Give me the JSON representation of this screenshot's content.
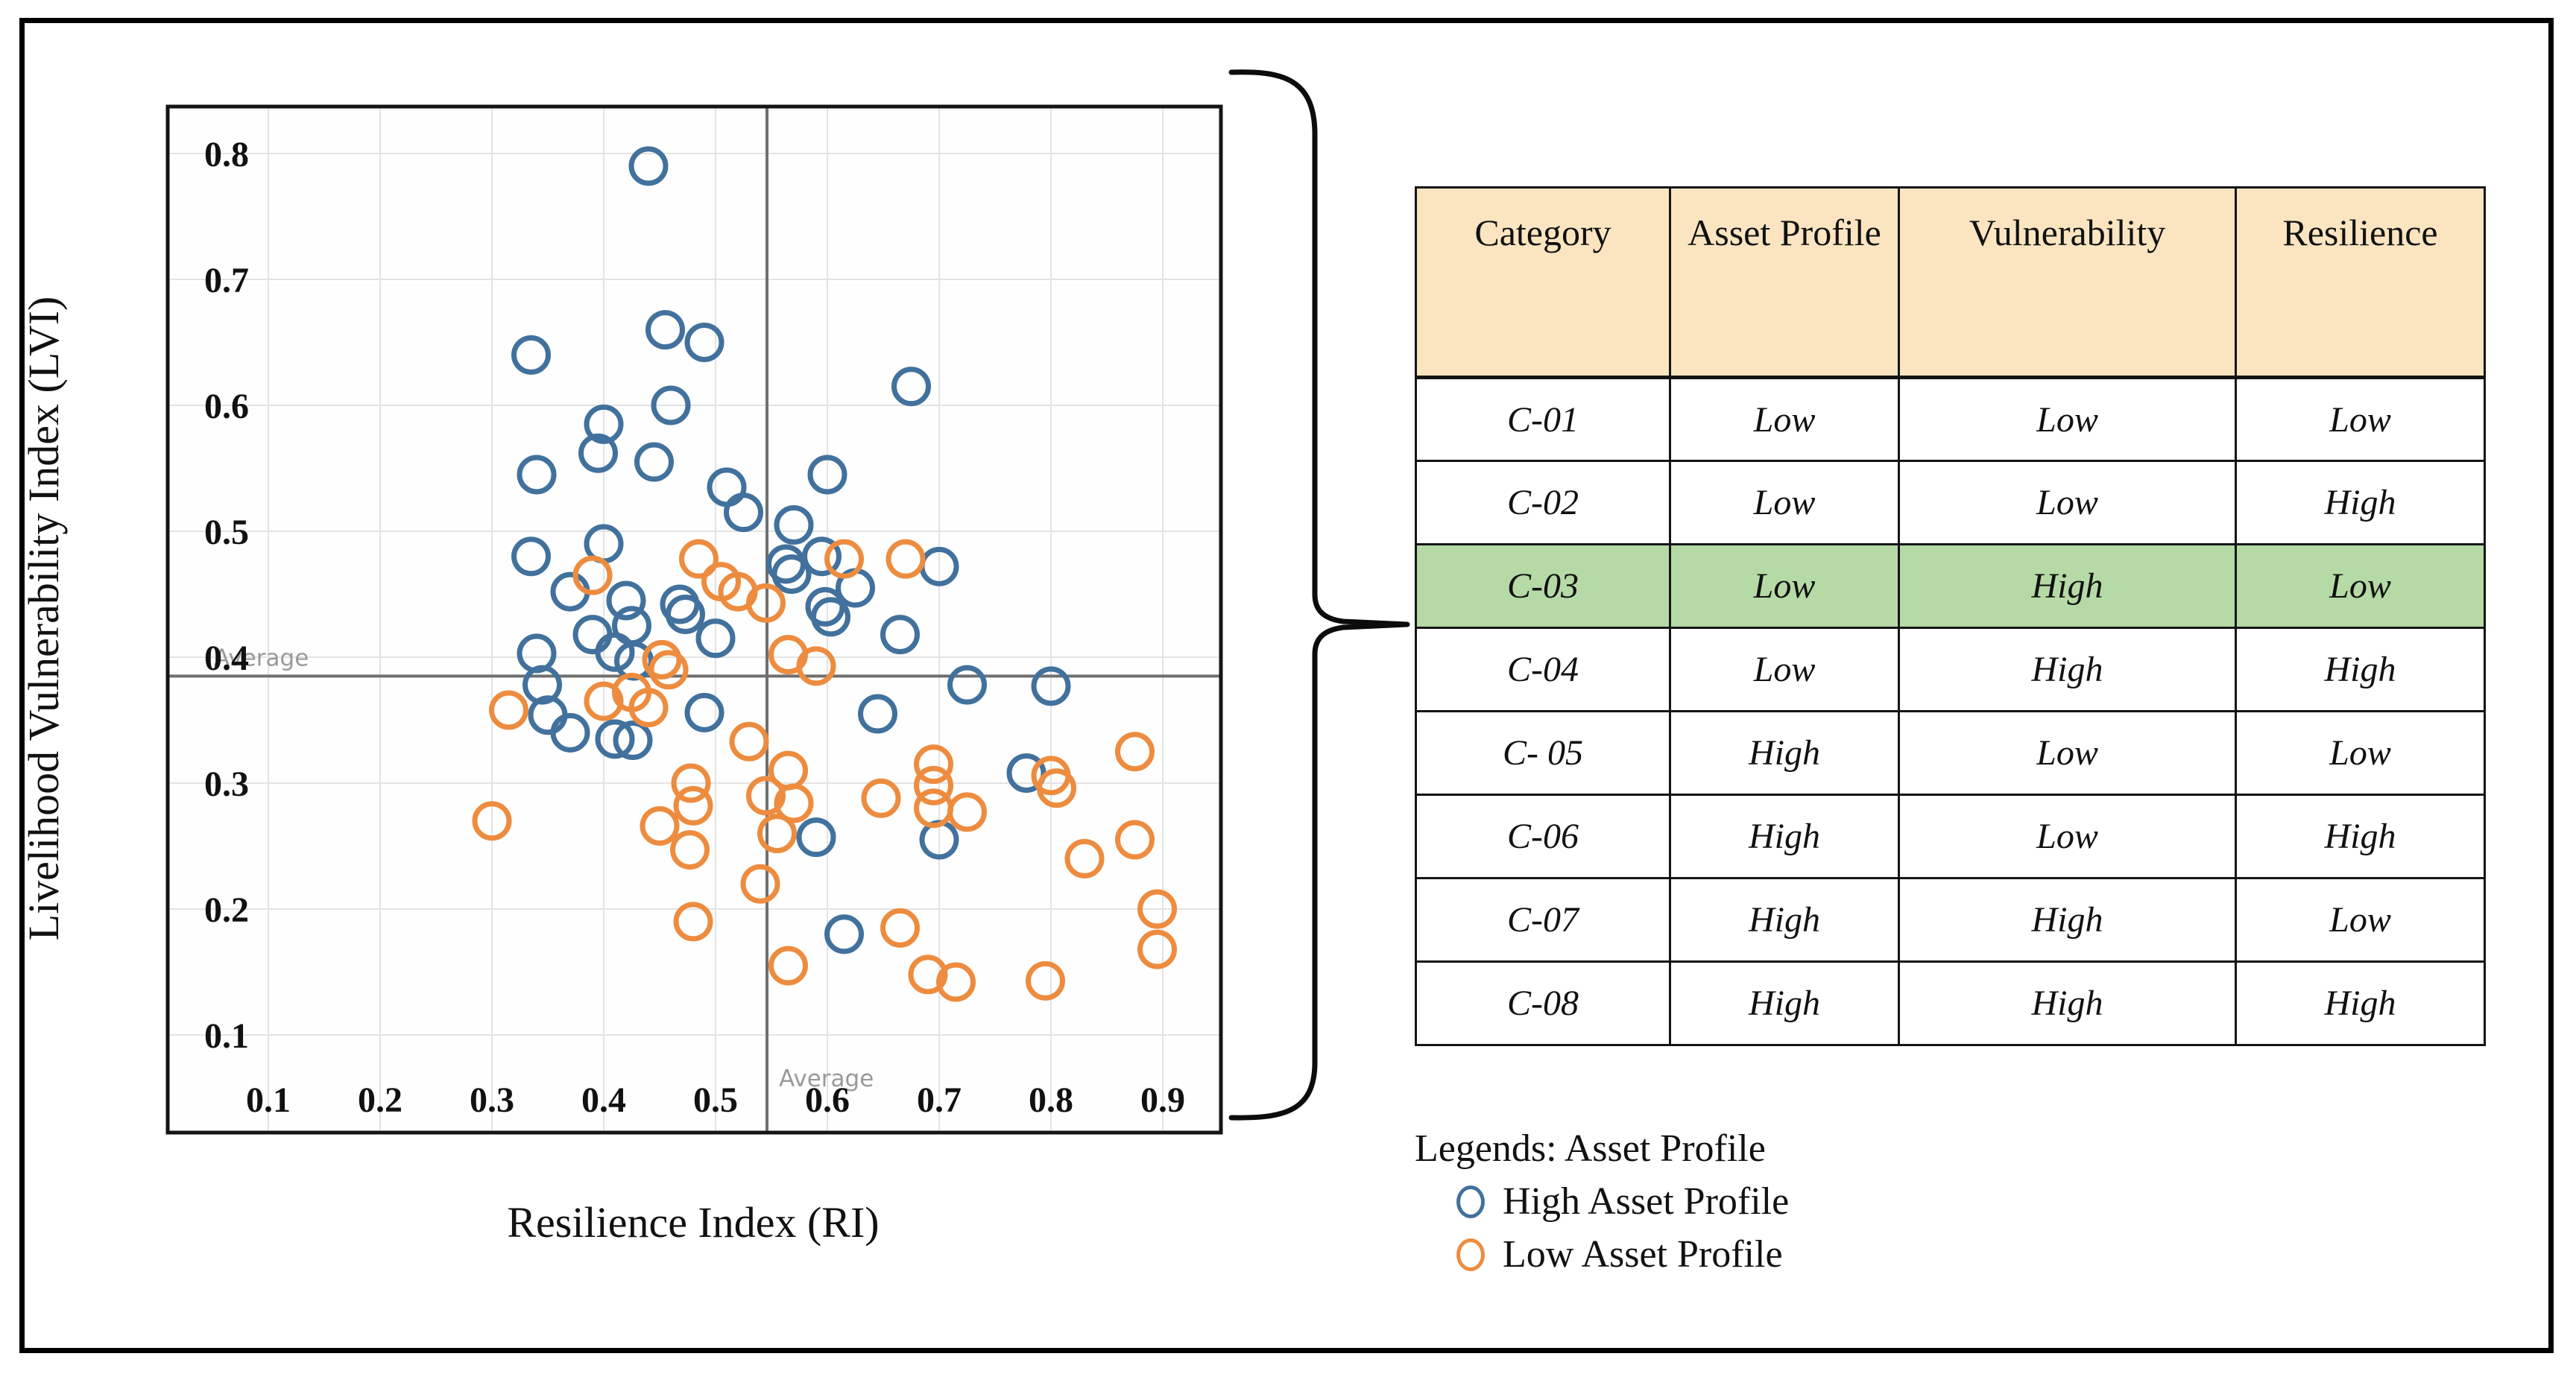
{
  "chart_data": {
    "type": "scatter",
    "xlabel": "Resilience Index (RI)",
    "ylabel": "Livelihood Vulnerability Index (LVI)",
    "xlim": [
      0.05,
      0.95
    ],
    "ylim": [
      0.08,
      0.84
    ],
    "x_ticks": [
      0.1,
      0.2,
      0.3,
      0.4,
      0.5,
      0.6,
      0.7,
      0.8,
      0.9
    ],
    "x_tick_labels": [
      "0.1",
      "0.2",
      "0.3",
      "0.4",
      "0.5",
      "0.6",
      "0.7",
      "0.8",
      "0.9"
    ],
    "y_ticks": [
      0.1,
      0.2,
      0.3,
      0.4,
      0.5,
      0.6,
      0.7,
      0.8
    ],
    "y_tick_labels": [
      "0.1",
      "0.2",
      "0.3",
      "0.4",
      "0.5",
      "0.6",
      "0.7",
      "0.8"
    ],
    "grid": true,
    "legend_position": "below-right (separate legend block)",
    "average_line_label": "Average",
    "average_ri": 0.546,
    "average_lvi": 0.385,
    "series": [
      {
        "name": "High Asset Profile",
        "color": "#41719C",
        "points": [
          [
            0.44,
            0.79
          ],
          [
            0.335,
            0.64
          ],
          [
            0.455,
            0.66
          ],
          [
            0.49,
            0.65
          ],
          [
            0.46,
            0.6
          ],
          [
            0.4,
            0.585
          ],
          [
            0.395,
            0.562
          ],
          [
            0.445,
            0.555
          ],
          [
            0.34,
            0.545
          ],
          [
            0.51,
            0.535
          ],
          [
            0.525,
            0.515
          ],
          [
            0.675,
            0.615
          ],
          [
            0.6,
            0.545
          ],
          [
            0.57,
            0.505
          ],
          [
            0.4,
            0.49
          ],
          [
            0.335,
            0.48
          ],
          [
            0.595,
            0.48
          ],
          [
            0.563,
            0.474
          ],
          [
            0.568,
            0.466
          ],
          [
            0.7,
            0.472
          ],
          [
            0.625,
            0.455
          ],
          [
            0.37,
            0.452
          ],
          [
            0.42,
            0.445
          ],
          [
            0.468,
            0.442
          ],
          [
            0.473,
            0.434
          ],
          [
            0.425,
            0.425
          ],
          [
            0.598,
            0.44
          ],
          [
            0.603,
            0.432
          ],
          [
            0.665,
            0.418
          ],
          [
            0.5,
            0.415
          ],
          [
            0.39,
            0.418
          ],
          [
            0.34,
            0.403
          ],
          [
            0.41,
            0.404
          ],
          [
            0.427,
            0.397
          ],
          [
            0.725,
            0.378
          ],
          [
            0.8,
            0.377
          ],
          [
            0.645,
            0.355
          ],
          [
            0.345,
            0.378
          ],
          [
            0.35,
            0.354
          ],
          [
            0.37,
            0.34
          ],
          [
            0.41,
            0.335
          ],
          [
            0.426,
            0.334
          ],
          [
            0.49,
            0.356
          ],
          [
            0.778,
            0.308
          ],
          [
            0.59,
            0.257
          ],
          [
            0.7,
            0.255
          ],
          [
            0.615,
            0.18
          ]
        ]
      },
      {
        "name": "Low Asset Profile",
        "color": "#ED8C3F",
        "points": [
          [
            0.39,
            0.465
          ],
          [
            0.485,
            0.478
          ],
          [
            0.505,
            0.46
          ],
          [
            0.52,
            0.452
          ],
          [
            0.545,
            0.443
          ],
          [
            0.615,
            0.478
          ],
          [
            0.67,
            0.478
          ],
          [
            0.565,
            0.402
          ],
          [
            0.59,
            0.393
          ],
          [
            0.452,
            0.398
          ],
          [
            0.458,
            0.39
          ],
          [
            0.315,
            0.358
          ],
          [
            0.4,
            0.365
          ],
          [
            0.425,
            0.372
          ],
          [
            0.44,
            0.36
          ],
          [
            0.3,
            0.27
          ],
          [
            0.478,
            0.3
          ],
          [
            0.48,
            0.282
          ],
          [
            0.45,
            0.266
          ],
          [
            0.477,
            0.247
          ],
          [
            0.53,
            0.333
          ],
          [
            0.565,
            0.31
          ],
          [
            0.545,
            0.29
          ],
          [
            0.57,
            0.284
          ],
          [
            0.555,
            0.26
          ],
          [
            0.54,
            0.22
          ],
          [
            0.565,
            0.155
          ],
          [
            0.48,
            0.19
          ],
          [
            0.648,
            0.288
          ],
          [
            0.695,
            0.315
          ],
          [
            0.695,
            0.298
          ],
          [
            0.695,
            0.28
          ],
          [
            0.725,
            0.277
          ],
          [
            0.8,
            0.306
          ],
          [
            0.805,
            0.296
          ],
          [
            0.875,
            0.325
          ],
          [
            0.83,
            0.24
          ],
          [
            0.875,
            0.255
          ],
          [
            0.895,
            0.2
          ],
          [
            0.895,
            0.168
          ],
          [
            0.665,
            0.185
          ],
          [
            0.69,
            0.148
          ],
          [
            0.715,
            0.142
          ],
          [
            0.795,
            0.143
          ]
        ]
      }
    ]
  },
  "table": {
    "header_bg": "#FBE5C1",
    "highlight_bg": "#B6DAA6",
    "headers": [
      "Category",
      "Asset Profile",
      "Vulnerability",
      "Resilience"
    ],
    "rows": [
      {
        "category": "C-01",
        "asset_profile": "Low",
        "vulnerability": "Low",
        "resilience": "Low"
      },
      {
        "category": "C-02",
        "asset_profile": "Low",
        "vulnerability": "Low",
        "resilience": "High"
      },
      {
        "category": "C-03",
        "asset_profile": "Low",
        "vulnerability": "High",
        "resilience": "Low"
      },
      {
        "category": "C-04",
        "asset_profile": "Low",
        "vulnerability": "High",
        "resilience": "High"
      },
      {
        "category": "C- 05",
        "asset_profile": "High",
        "vulnerability": "Low",
        "resilience": "Low"
      },
      {
        "category": "C-06",
        "asset_profile": "High",
        "vulnerability": "Low",
        "resilience": "High"
      },
      {
        "category": "C-07",
        "asset_profile": "High",
        "vulnerability": "High",
        "resilience": "Low"
      },
      {
        "category": "C-08",
        "asset_profile": "High",
        "vulnerability": "High",
        "resilience": "High"
      }
    ],
    "highlighted_category": "C-03"
  },
  "legend": {
    "title": "Legends: Asset Profile",
    "items": [
      {
        "label": "High Asset Profile",
        "color": "#41719C"
      },
      {
        "label": "Low Asset Profile",
        "color": "#ED8C3F"
      }
    ]
  }
}
